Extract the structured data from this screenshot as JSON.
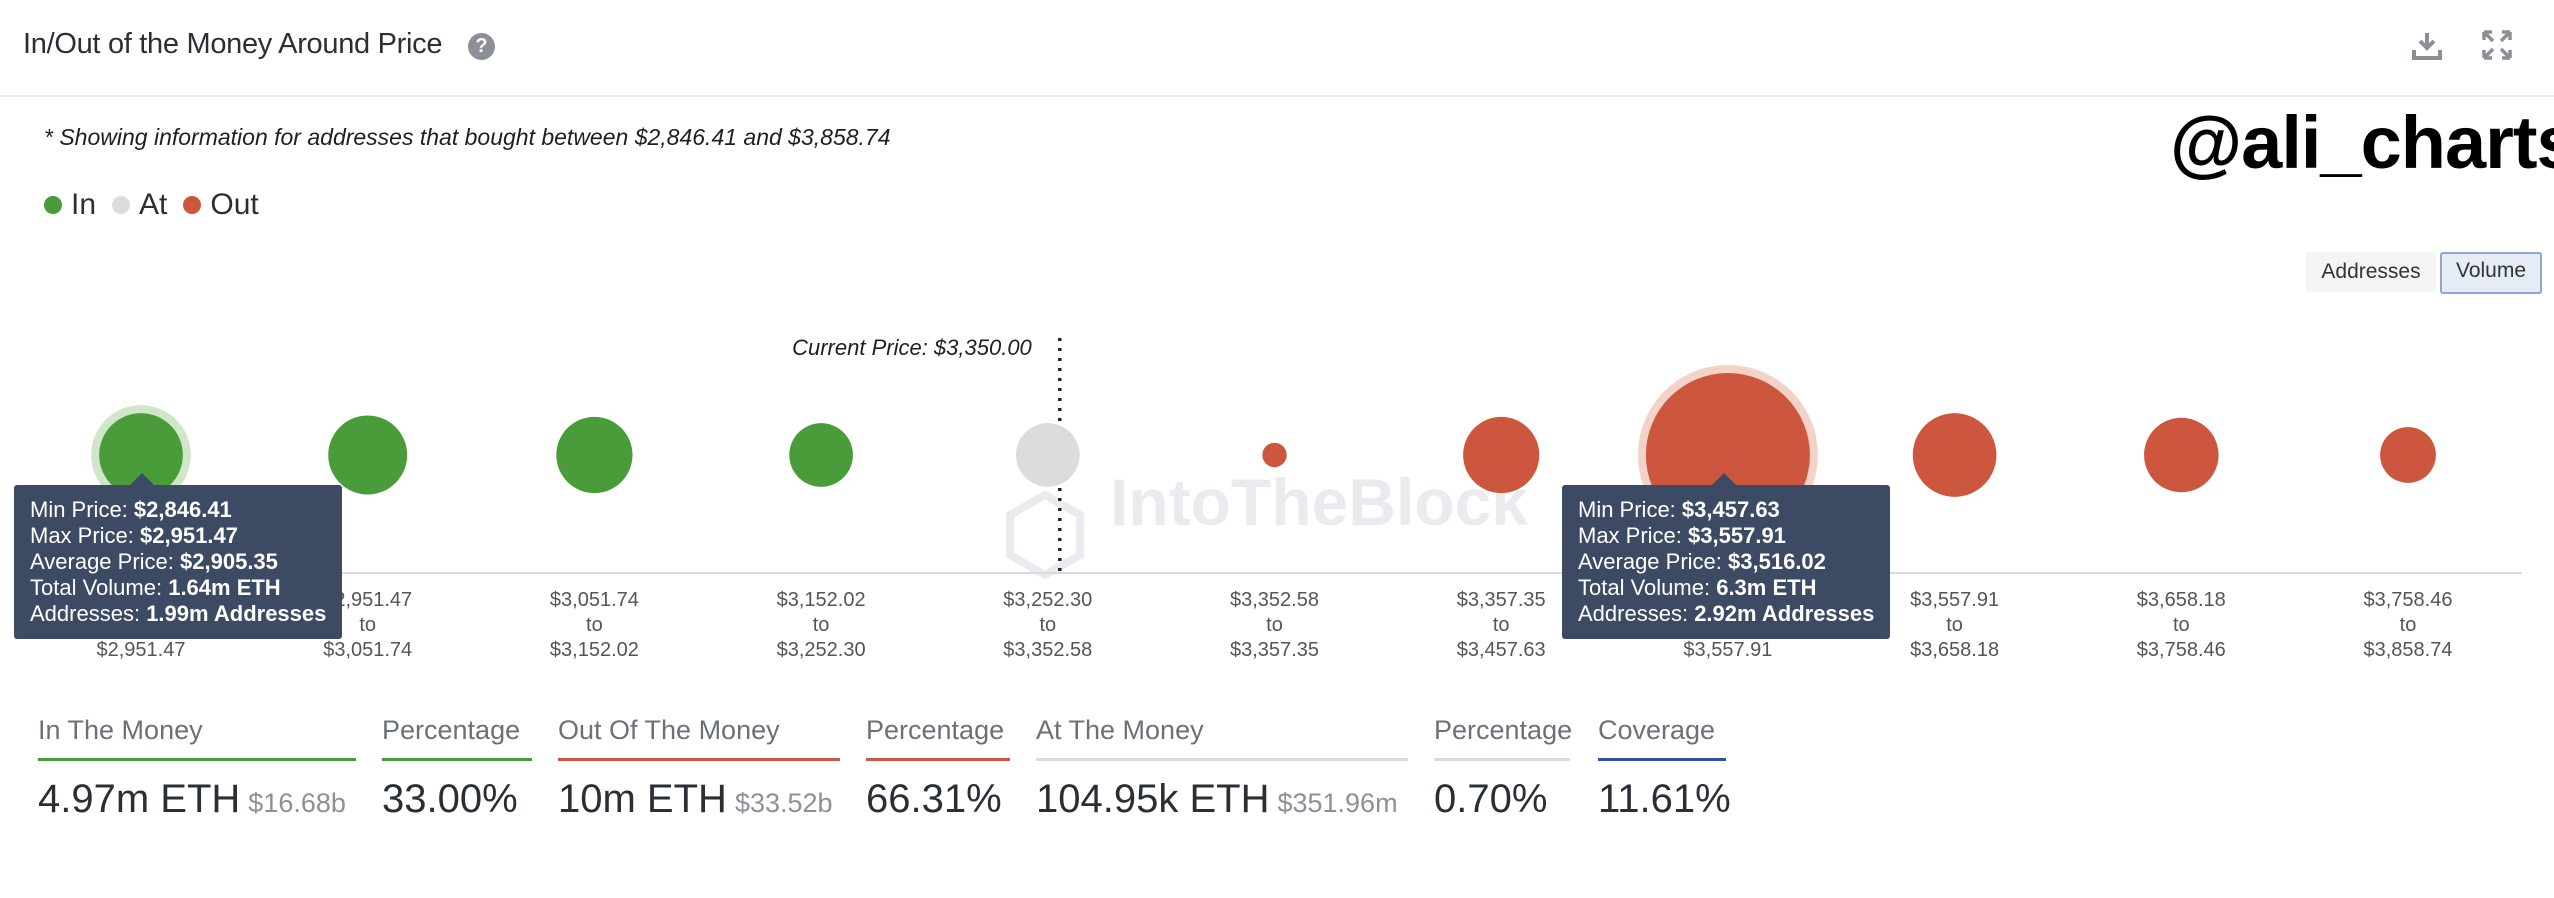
{
  "header": {
    "title": "In/Out of the Money Around Price",
    "help_icon": "question-circle-icon",
    "download_icon": "download-icon",
    "expand_icon": "expand-icon"
  },
  "note": "* Showing information for addresses that bought between $2,846.41 and $3,858.74",
  "watermark_handle": "@ali_charts",
  "brand_watermark": "IntoTheBlock",
  "legend": [
    {
      "label": "In",
      "color": "#4a9c3a"
    },
    {
      "label": "At",
      "color": "#dcdcdc"
    },
    {
      "label": "Out",
      "color": "#cc573e"
    }
  ],
  "toggles": {
    "addresses": "Addresses",
    "volume": "Volume",
    "active": "Volume"
  },
  "colors": {
    "in": "#4a9c3a",
    "at": "#dcdcdc",
    "out": "#cc573e",
    "in_halo": "#cfe6c8",
    "out_halo": "#f3d2c8",
    "coverage": "#2d4fa8"
  },
  "chart_data": {
    "type": "bubble",
    "current_price_label": "Current Price: $3,350.00",
    "current_price": 3350.0,
    "metric": "Total Volume (ETH)",
    "buckets": [
      {
        "from": "$2,846.41",
        "to": "$2,951.47",
        "status": "in",
        "volume": 1.64
      },
      {
        "from": "$2,951.47",
        "to": "$3,051.74",
        "status": "in",
        "volume": 1.46
      },
      {
        "from": "$3,051.74",
        "to": "$3,152.02",
        "status": "in",
        "volume": 1.36
      },
      {
        "from": "$3,152.02",
        "to": "$3,252.30",
        "status": "in",
        "volume": 0.95
      },
      {
        "from": "$3,252.30",
        "to": "$3,352.58",
        "status": "at",
        "volume": 0.95
      },
      {
        "from": "$3,352.58",
        "to": "$3,357.35",
        "status": "out",
        "volume": 0.14
      },
      {
        "from": "$3,357.35",
        "to": "$3,457.63",
        "status": "out",
        "volume": 1.36
      },
      {
        "from": "$3,457.63",
        "to": "$3,557.91",
        "status": "out",
        "volume": 6.3
      },
      {
        "from": "$3,557.91",
        "to": "$3,658.18",
        "status": "out",
        "volume": 1.64
      },
      {
        "from": "$3,658.18",
        "to": "$3,758.46",
        "status": "out",
        "volume": 1.3
      },
      {
        "from": "$3,758.46",
        "to": "$3,858.74",
        "status": "out",
        "volume": 0.73
      }
    ],
    "to_word": "to"
  },
  "tooltips": [
    {
      "min_label": "Min Price:",
      "min": "$2,846.41",
      "max_label": "Max Price:",
      "max": "$2,951.47",
      "avg_label": "Average Price:",
      "avg": "$2,905.35",
      "vol_label": "Total Volume:",
      "vol": "1.64m ETH",
      "addr_label": "Addresses:",
      "addr": "1.99m Addresses"
    },
    {
      "min_label": "Min Price:",
      "min": "$3,457.63",
      "max_label": "Max Price:",
      "max": "$3,557.91",
      "avg_label": "Average Price:",
      "avg": "$3,516.02",
      "vol_label": "Total Volume:",
      "vol": "6.3m ETH",
      "addr_label": "Addresses:",
      "addr": "2.92m Addresses"
    }
  ],
  "stats": {
    "in_money": {
      "label": "In The Money",
      "value": "4.97m ETH",
      "sub": "$16.68b"
    },
    "in_pct": {
      "label": "Percentage",
      "value": "33.00%"
    },
    "out_money": {
      "label": "Out Of The Money",
      "value": "10m ETH",
      "sub": "$33.52b"
    },
    "out_pct": {
      "label": "Percentage",
      "value": "66.31%"
    },
    "at_money": {
      "label": "At The Money",
      "value": "104.95k ETH",
      "sub": "$351.96m"
    },
    "at_pct": {
      "label": "Percentage",
      "value": "0.70%"
    },
    "coverage": {
      "label": "Coverage",
      "value": "11.61%"
    }
  }
}
